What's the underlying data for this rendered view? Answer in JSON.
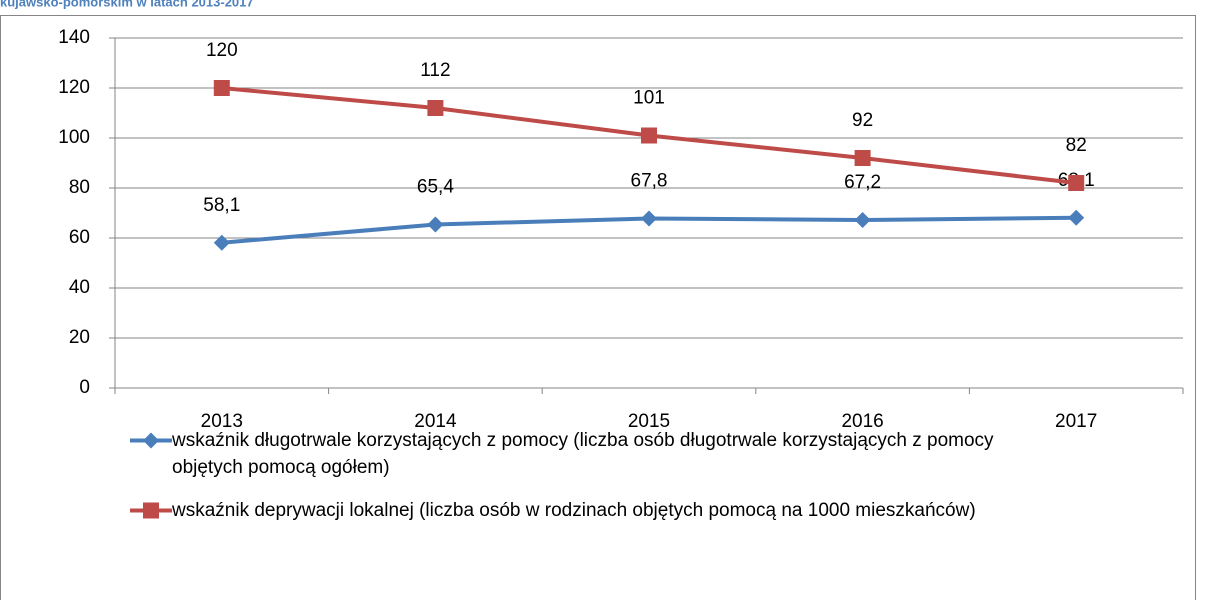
{
  "chart_data": {
    "type": "line",
    "title": "kujawsko-pomorskim w latach 2013-2017",
    "categories": [
      "2013",
      "2014",
      "2015",
      "2016",
      "2017"
    ],
    "series": [
      {
        "name": "wskaźnik długotrwale korzystających z pomocy (liczba osób długotrwale korzystających z pomocy objętych pomocą ogółem)",
        "color": "#4a7ebb",
        "marker": "diamond",
        "values": [
          58.1,
          65.4,
          67.8,
          67.2,
          68.1
        ],
        "value_labels": [
          "58,1",
          "65,4",
          "67,8",
          "67,2",
          "68,1"
        ]
      },
      {
        "name": "wskaźnik deprywacji lokalnej (liczba osób w rodzinach objętych pomocą na 1000 mieszkańców)",
        "color": "#be4b48",
        "marker": "square",
        "values": [
          120,
          112,
          101,
          92,
          82
        ]
      }
    ],
    "ylim": [
      0,
      140
    ],
    "yticks": [
      0,
      20,
      40,
      60,
      80,
      100,
      120,
      140
    ],
    "grid": true
  }
}
